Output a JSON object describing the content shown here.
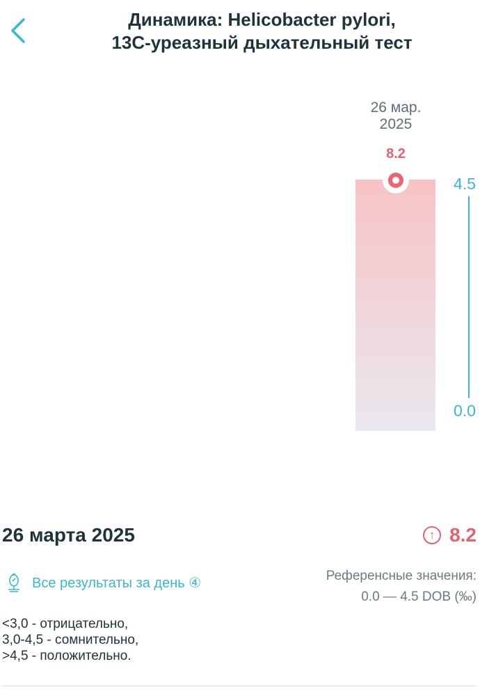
{
  "header": {
    "title_line1": "Динамика: Helicobacter pylori,",
    "title_line2": "13C-уреазный дыхательный тест"
  },
  "chart_data": {
    "type": "bar",
    "categories": [
      "26 мар. 2025"
    ],
    "category_lines": [
      "26 мар.",
      "2025"
    ],
    "values": [
      8.2
    ],
    "value_labels": [
      "8.2"
    ],
    "reference_range": [
      0.0,
      4.5
    ],
    "axis_labels": [
      "4.5",
      "0.0"
    ],
    "colors": {
      "bar": "#f7c3c5",
      "point": "#ec6671",
      "axis": "#3bb7cc"
    }
  },
  "result": {
    "date": "26 марта 2025",
    "value": "8.2",
    "trend": "up",
    "all_results_label": "Все результаты за день",
    "all_results_count": "④",
    "reference_title": "Референсные значения:",
    "reference_value": "0.0 — 4.5 DOB (‰)",
    "note": "<3,0 - отрицательно,\n3,0-4,5 - сомнительно,\n>4,5 - положительно."
  }
}
